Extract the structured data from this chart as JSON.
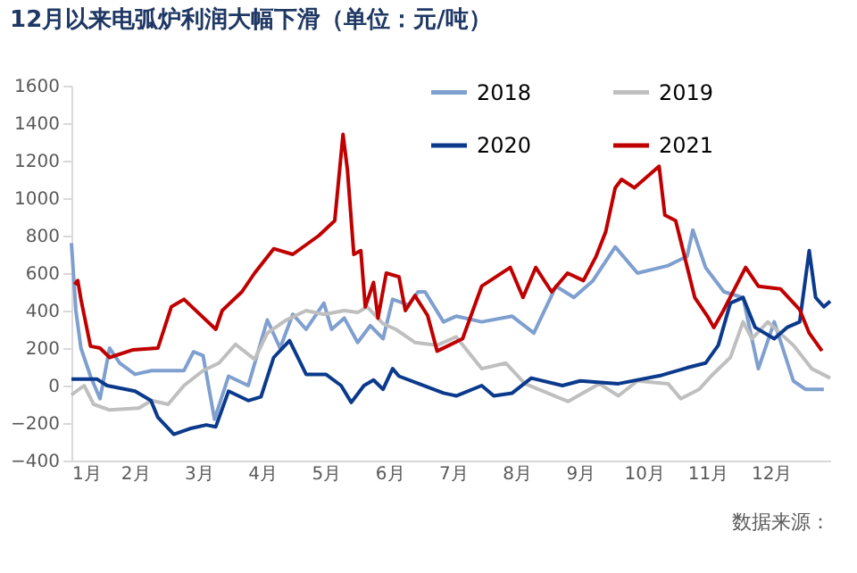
{
  "chart_data": {
    "type": "line",
    "title": "12月以来电弧炉利润大幅下滑（单位：元/吨）",
    "annotations": [
      "数据来源："
    ],
    "xlim": [
      1,
      12.93
    ],
    "xticks": [
      {
        "value": 1,
        "label": "1月"
      },
      {
        "value": 2,
        "label": "2月"
      },
      {
        "value": 3,
        "label": "3月"
      },
      {
        "value": 4,
        "label": "4月"
      },
      {
        "value": 5,
        "label": "5月"
      },
      {
        "value": 6,
        "label": "6月"
      },
      {
        "value": 7,
        "label": "7月"
      },
      {
        "value": 8,
        "label": "8月"
      },
      {
        "value": 9,
        "label": "9月"
      },
      {
        "value": 10,
        "label": "10月"
      },
      {
        "value": 11,
        "label": "11月"
      },
      {
        "value": 12,
        "label": "12月"
      }
    ],
    "ylim": [
      -400,
      1600
    ],
    "yticks": [
      -400,
      -200,
      0,
      200,
      400,
      600,
      800,
      1000,
      1200,
      1400,
      1600
    ],
    "grid": false,
    "legend": "top",
    "marker": "none",
    "line_style": "solid",
    "series": [
      {
        "name": "2018",
        "color": "#7f9fcf",
        "x": [
          1.0,
          1.07,
          1.15,
          1.3,
          1.45,
          1.6,
          1.76,
          2.0,
          2.26,
          2.77,
          2.92,
          3.07,
          3.25,
          3.47,
          3.78,
          4.08,
          4.28,
          4.48,
          4.69,
          4.97,
          5.09,
          5.29,
          5.5,
          5.7,
          5.9,
          6.05,
          6.3,
          6.45,
          6.56,
          6.85,
          7.05,
          7.45,
          7.93,
          8.27,
          8.62,
          8.9,
          9.2,
          9.55,
          9.9,
          10.38,
          10.68,
          10.77,
          10.97,
          11.26,
          11.56,
          11.8,
          12.05,
          12.35,
          12.54,
          12.83
        ],
        "values": [
          760,
          400,
          200,
          50,
          -70,
          200,
          120,
          60,
          80,
          80,
          180,
          160,
          -180,
          50,
          0,
          350,
          200,
          380,
          300,
          440,
          300,
          360,
          230,
          320,
          250,
          460,
          430,
          500,
          500,
          340,
          370,
          340,
          370,
          280,
          530,
          470,
          560,
          740,
          600,
          640,
          690,
          830,
          630,
          500,
          470,
          90,
          340,
          25,
          -20,
          -20
        ]
      },
      {
        "name": "2019",
        "color": "#bfbfbf",
        "x": [
          1.0,
          1.2,
          1.35,
          1.6,
          2.06,
          2.26,
          2.52,
          2.77,
          3.07,
          3.32,
          3.58,
          3.88,
          4.08,
          4.38,
          4.69,
          4.97,
          5.29,
          5.5,
          5.65,
          5.9,
          6.1,
          6.4,
          6.75,
          7.05,
          7.45,
          7.83,
          8.13,
          8.81,
          9.3,
          9.6,
          9.9,
          10.38,
          10.58,
          10.87,
          11.07,
          11.36,
          11.56,
          11.7,
          11.95,
          12.35,
          12.64,
          12.93
        ],
        "values": [
          -50,
          0,
          -100,
          -130,
          -120,
          -80,
          -100,
          0,
          80,
          120,
          220,
          140,
          280,
          350,
          400,
          380,
          400,
          390,
          420,
          330,
          300,
          230,
          215,
          260,
          90,
          120,
          10,
          -85,
          10,
          -55,
          25,
          10,
          -70,
          -20,
          55,
          150,
          340,
          250,
          340,
          215,
          90,
          40
        ]
      },
      {
        "name": "2020",
        "color": "#0b3a8c",
        "x": [
          1.0,
          1.4,
          1.56,
          2.0,
          2.25,
          2.36,
          2.61,
          2.86,
          3.12,
          3.27,
          3.47,
          3.78,
          3.98,
          4.18,
          4.43,
          4.69,
          5.0,
          5.24,
          5.4,
          5.6,
          5.75,
          5.9,
          6.05,
          6.15,
          6.46,
          6.85,
          7.05,
          7.45,
          7.64,
          7.93,
          8.23,
          8.72,
          9.0,
          9.6,
          10.28,
          10.68,
          10.97,
          11.17,
          11.36,
          11.56,
          11.75,
          12.05,
          12.25,
          12.45,
          12.6,
          12.7,
          12.83,
          12.93
        ],
        "values": [
          35,
          35,
          0,
          -30,
          -80,
          -170,
          -260,
          -230,
          -210,
          -220,
          -30,
          -80,
          -60,
          150,
          240,
          60,
          60,
          0,
          -90,
          0,
          30,
          -20,
          90,
          50,
          10,
          -40,
          -55,
          0,
          -55,
          -40,
          40,
          0,
          25,
          10,
          55,
          95,
          120,
          215,
          440,
          470,
          310,
          250,
          310,
          340,
          720,
          470,
          420,
          450
        ]
      },
      {
        "name": "2021",
        "color": "#c00000",
        "x": [
          1.05,
          1.1,
          1.15,
          1.3,
          1.45,
          1.6,
          1.96,
          2.36,
          2.57,
          2.77,
          3.27,
          3.37,
          3.68,
          3.88,
          4.18,
          4.48,
          4.89,
          5.14,
          5.27,
          5.34,
          5.44,
          5.55,
          5.62,
          5.75,
          5.82,
          5.95,
          6.15,
          6.25,
          6.4,
          6.6,
          6.75,
          7.15,
          7.45,
          7.9,
          8.1,
          8.3,
          8.55,
          8.8,
          9.05,
          9.25,
          9.4,
          9.55,
          9.65,
          9.85,
          10.24,
          10.33,
          10.5,
          10.8,
          11.0,
          11.1,
          11.25,
          11.6,
          11.8,
          12.15,
          12.45,
          12.6,
          12.8
        ],
        "values": [
          540,
          560,
          460,
          210,
          200,
          150,
          190,
          200,
          420,
          460,
          300,
          400,
          500,
          600,
          730,
          700,
          800,
          880,
          1340,
          1150,
          700,
          720,
          420,
          550,
          360,
          600,
          580,
          400,
          480,
          374,
          184,
          250,
          530,
          630,
          470,
          630,
          500,
          600,
          560,
          690,
          820,
          1055,
          1100,
          1055,
          1170,
          910,
          880,
          470,
          370,
          310,
          400,
          630,
          530,
          515,
          405,
          280,
          185
        ]
      }
    ]
  }
}
